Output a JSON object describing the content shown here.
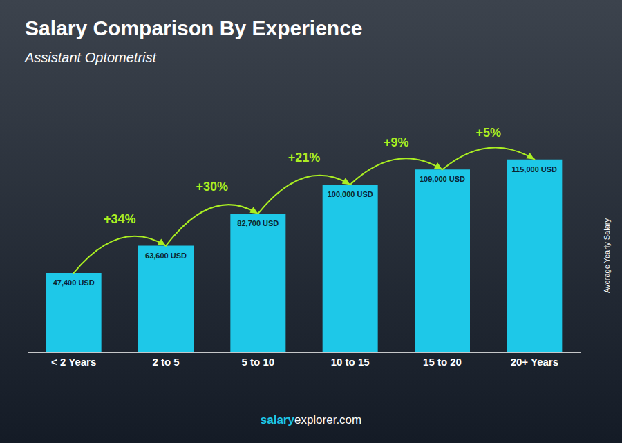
{
  "chart_data": {
    "type": "bar",
    "title": "Salary Comparison By Experience",
    "subtitle": "Assistant Optometrist",
    "categories": [
      "< 2 Years",
      "2 to 5",
      "5 to 10",
      "10 to 15",
      "15 to 20",
      "20+ Years"
    ],
    "values": [
      47400,
      63600,
      82700,
      100000,
      109000,
      115000
    ],
    "value_labels": [
      "47,400 USD",
      "63,600 USD",
      "82,700 USD",
      "100,000 USD",
      "109,000 USD",
      "115,000 USD"
    ],
    "data_labels": true,
    "color": "#1EC8E8",
    "ylim": [
      0,
      140000
    ],
    "ylabel": "Average Yearly Salary",
    "grid": false,
    "tick_labels": "x",
    "annotations": [
      {
        "text": "+34%",
        "from": "< 2 Years",
        "to": "2 to 5",
        "color": "#AAEE22"
      },
      {
        "text": "+30%",
        "from": "2 to 5",
        "to": "5 to 10",
        "color": "#AAEE22"
      },
      {
        "text": "+21%",
        "from": "5 to 10",
        "to": "10 to 15",
        "color": "#AAEE22"
      },
      {
        "text": "+9%",
        "from": "10 to 15",
        "to": "15 to 20",
        "color": "#AAEE22"
      },
      {
        "text": "+5%",
        "from": "15 to 20",
        "to": "20+ Years",
        "color": "#AAEE22"
      }
    ],
    "watermark": [
      "salary",
      "explorer.com"
    ]
  }
}
